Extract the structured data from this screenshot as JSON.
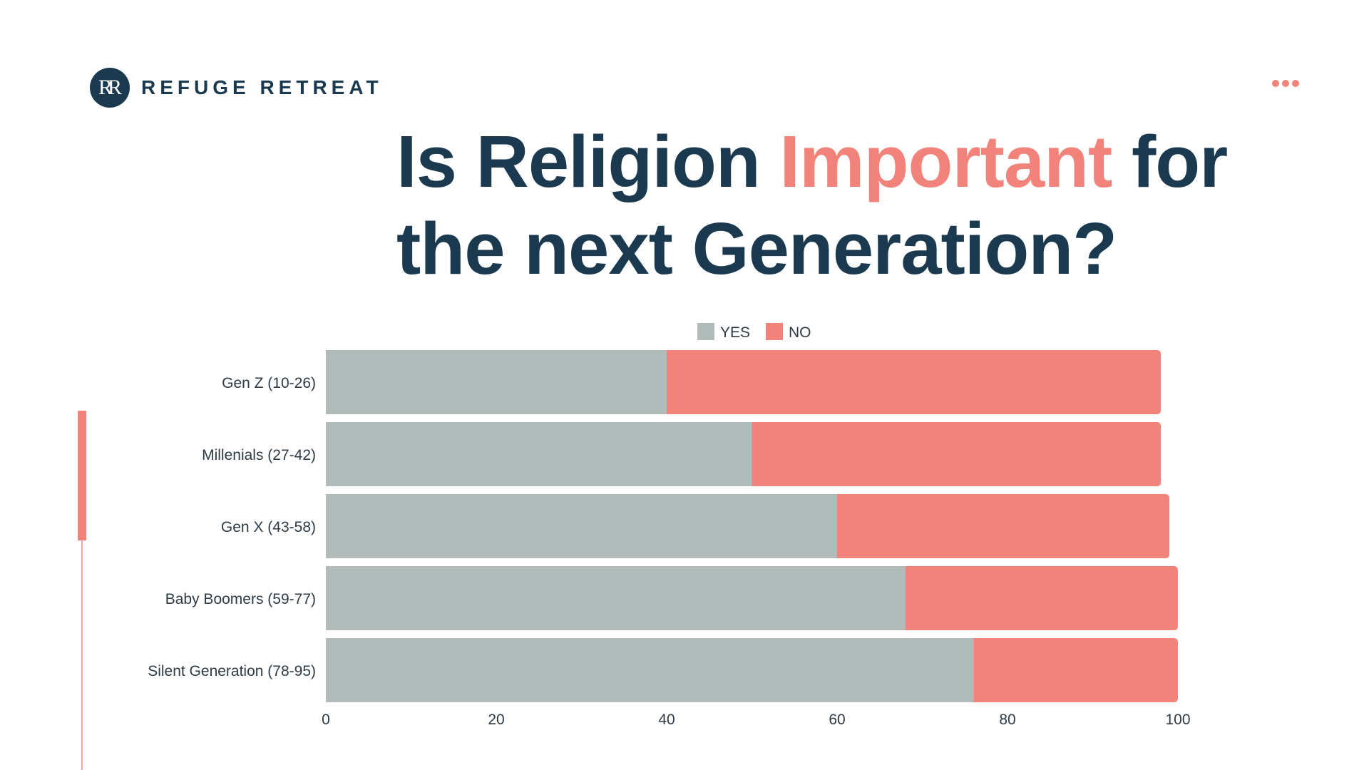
{
  "brand": {
    "logo_text": "RR",
    "name": "REFUGE RETREAT"
  },
  "header": {
    "title_part1": "Is Religion ",
    "title_accent": "Important",
    "title_part2": " for",
    "title_line2": "the next Generation?"
  },
  "colors": {
    "navy": "#1c3a4f",
    "coral": "#f2837a",
    "gray": "#b0bbba"
  },
  "chart_data": {
    "type": "bar",
    "orientation": "horizontal",
    "stacked": true,
    "categories": [
      "Gen Z (10-26)",
      "Millenials (27-42)",
      "Gen X (43-58)",
      "Baby Boomers (59-77)",
      "Silent Generation (78-95)"
    ],
    "series": [
      {
        "name": "YES",
        "color": "#b0bbba",
        "values": [
          40,
          50,
          60,
          68,
          76
        ]
      },
      {
        "name": "NO",
        "color": "#f2837a",
        "values": [
          58,
          48,
          39,
          32,
          24
        ]
      }
    ],
    "xticks": [
      0,
      20,
      40,
      60,
      80,
      100
    ],
    "xlim": [
      0,
      100
    ],
    "legend_position": "top-center",
    "title": "",
    "xlabel": "",
    "ylabel": ""
  }
}
